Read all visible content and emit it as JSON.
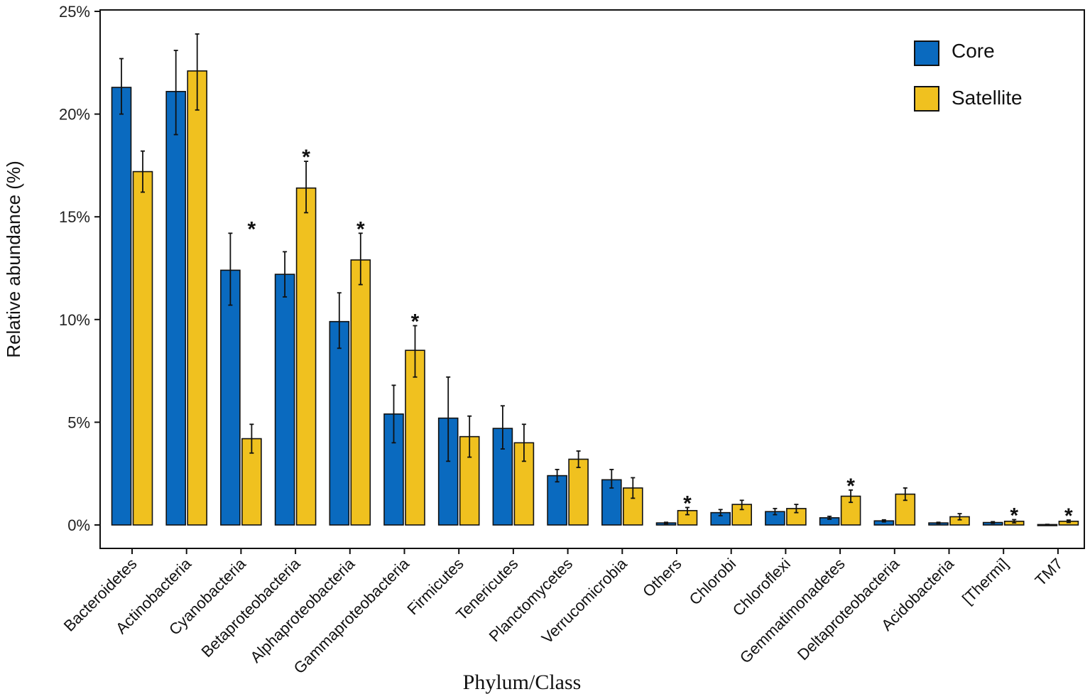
{
  "chart_data": {
    "type": "bar",
    "title": "",
    "xlabel": "Phylum/Class",
    "ylabel": "Relative abundance (%)",
    "ylim": [
      0,
      25
    ],
    "yticks": [
      0,
      5,
      10,
      15,
      20,
      25
    ],
    "ytick_labels": [
      "0%",
      "5%",
      "10%",
      "15%",
      "20%",
      "25%"
    ],
    "legend_position": "top-right",
    "categories": [
      "Bacteroidetes",
      "Actinobacteria",
      "Cyanobacteria",
      "Betaproteobacteria",
      "Alphaproteobacteria",
      "Gammaproteobacteria",
      "Firmicutes",
      "Tenericutes",
      "Planctomycetes",
      "Verrucomicrobia",
      "Others",
      "Chlorobi",
      "Chloroflexi",
      "Gemmatimonadetes",
      "Deltaproteobacteria",
      "Acidobacteria",
      "[Thermi]",
      "TM7"
    ],
    "series": [
      {
        "name": "Core",
        "color": "#0a6abf",
        "values": [
          21.3,
          21.1,
          12.4,
          12.2,
          9.9,
          5.4,
          5.2,
          4.7,
          2.4,
          2.2,
          0.1,
          0.6,
          0.65,
          0.35,
          0.2,
          0.1,
          0.12,
          0.02
        ],
        "err_low": [
          20.0,
          19.0,
          10.7,
          11.1,
          8.6,
          4.0,
          3.1,
          3.7,
          2.1,
          1.8,
          0.06,
          0.45,
          0.5,
          0.28,
          0.15,
          0.07,
          0.08,
          0.01
        ],
        "err_high": [
          22.7,
          23.1,
          14.2,
          13.3,
          11.3,
          6.8,
          7.2,
          5.8,
          2.7,
          2.7,
          0.13,
          0.75,
          0.8,
          0.42,
          0.25,
          0.13,
          0.16,
          0.03
        ]
      },
      {
        "name": "Satellite",
        "color": "#f0c11f",
        "values": [
          17.2,
          22.1,
          4.2,
          16.4,
          12.9,
          8.5,
          4.3,
          4.0,
          3.2,
          1.8,
          0.7,
          1.0,
          0.8,
          1.4,
          1.5,
          0.4,
          0.18,
          0.18
        ],
        "err_low": [
          16.2,
          20.2,
          3.5,
          15.2,
          11.7,
          7.2,
          3.3,
          3.1,
          2.8,
          1.3,
          0.5,
          0.75,
          0.6,
          1.1,
          1.2,
          0.25,
          0.1,
          0.12
        ],
        "err_high": [
          18.2,
          23.9,
          4.9,
          17.7,
          14.2,
          9.7,
          5.3,
          4.9,
          3.6,
          2.3,
          0.85,
          1.2,
          1.0,
          1.7,
          1.8,
          0.55,
          0.26,
          0.24
        ]
      }
    ],
    "significance_marks": [
      {
        "category": "Cyanobacteria",
        "label": "*"
      },
      {
        "category": "Betaproteobacteria",
        "label": "*"
      },
      {
        "category": "Alphaproteobacteria",
        "label": "*"
      },
      {
        "category": "Gammaproteobacteria",
        "label": "*"
      },
      {
        "category": "Others",
        "label": "*"
      },
      {
        "category": "Gemmatimonadetes",
        "label": "*"
      },
      {
        "category": "[Thermi]",
        "label": "*"
      },
      {
        "category": "TM7",
        "label": "*"
      }
    ]
  }
}
